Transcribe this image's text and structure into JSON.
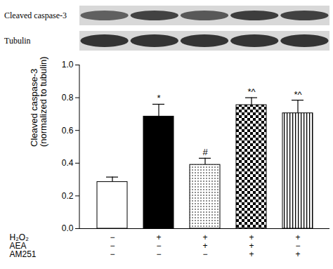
{
  "blot": {
    "rows": [
      "Cleaved caspase-3",
      "Tubulin"
    ]
  },
  "chart_data": {
    "type": "bar",
    "y_label": "Cleaved caspase-3\n(normalized to tubulin)",
    "values": [
      0.285,
      0.685,
      0.39,
      0.755,
      0.705
    ],
    "errors": [
      0.03,
      0.075,
      0.04,
      0.045,
      0.08
    ],
    "annotations": [
      null,
      "*",
      "#",
      "*^",
      "*^"
    ],
    "colors": [
      "#ffffff",
      "#000000",
      "#ffffff",
      "#ffffff",
      "#ffffff"
    ],
    "ylim": [
      0,
      1
    ],
    "yticks": [
      {
        "value": 0,
        "label": "0.0"
      },
      {
        "value": 0.2,
        "label": "0.2"
      },
      {
        "value": 0.4,
        "label": "0.4"
      },
      {
        "value": 0.6,
        "label": "0.6"
      },
      {
        "value": 0.8,
        "label": "0.8"
      },
      {
        "value": 1,
        "label": "1.0"
      }
    ],
    "treatments": [
      {
        "name": "H₂O₂",
        "signs": [
          "−",
          "+",
          "+",
          "+",
          "+"
        ]
      },
      {
        "name": "AEA",
        "signs": [
          "−",
          "−",
          "+",
          "+",
          "−"
        ]
      },
      {
        "name": "AM251",
        "signs": [
          "−",
          "−",
          "−",
          "+",
          "+"
        ]
      }
    ]
  }
}
